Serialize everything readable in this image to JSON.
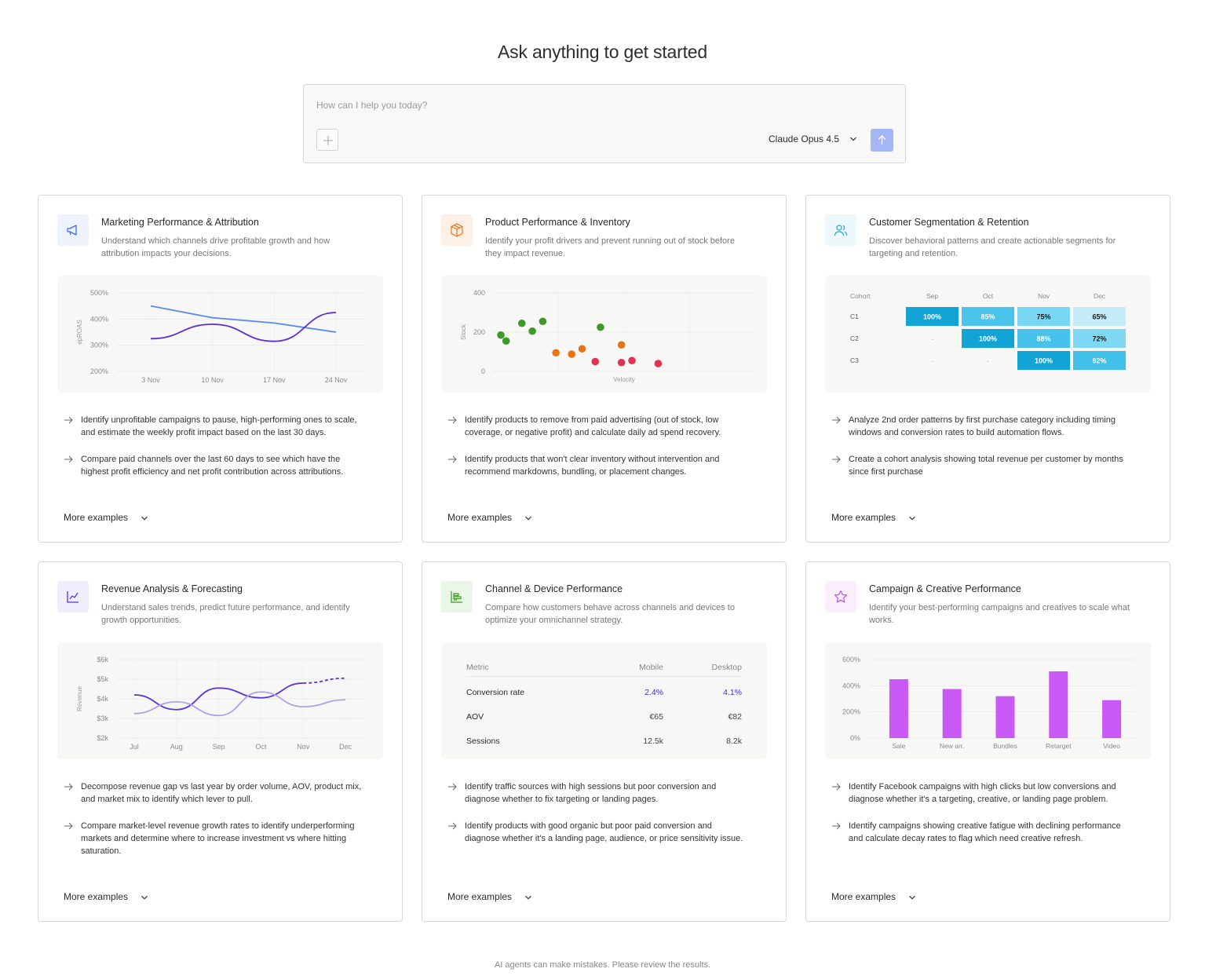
{
  "header": {
    "title": "Ask anything to get started"
  },
  "composer": {
    "placeholder": "How can I help you today?",
    "model": "Claude Opus 4.5",
    "attach_icon": "plus-icon",
    "send_icon": "arrow-up-icon",
    "send_color": "#a3b6f5"
  },
  "cards": [
    {
      "title": "Marketing Performance & Attribution",
      "desc": "Understand which channels drive profitable growth and how attribution impacts your decisions.",
      "icon": "megaphone-icon",
      "icon_bg": "#eef2fd",
      "examples": [
        "Identify unprofitable campaigns to pause, high-performing ones to scale, and estimate the weekly profit impact based on the last 30 days.",
        "Compare paid channels over the last 60 days to see which have the highest profit efficiency and net profit contribution across attributions."
      ],
      "more": "More examples"
    },
    {
      "title": "Product Performance & Inventory",
      "desc": "Identify your profit drivers and prevent running out of stock before they impact revenue.",
      "icon": "package-icon",
      "icon_bg": "#fdf0e6",
      "examples": [
        "Identify products to remove from paid advertising (out of stock, low coverage, or negative profit) and calculate daily ad spend recovery.",
        "Identify products that won't clear inventory without intervention and recommend markdowns, bundling, or placement changes."
      ],
      "more": "More examples"
    },
    {
      "title": "Customer Segmentation & Retention",
      "desc": "Discover behavioral patterns and create actionable segments for targeting and retention.",
      "icon": "users-icon",
      "icon_bg": "#ecf8fc",
      "examples": [
        "Analyze 2nd order patterns by first purchase category including timing windows and conversion rates to build automation flows.",
        "Create a cohort analysis showing total revenue per customer by months since first purchase"
      ],
      "more": "More examples"
    },
    {
      "title": "Revenue Analysis & Forecasting",
      "desc": "Understand sales trends, predict future performance, and identify growth opportunities.",
      "icon": "trend-chart-icon",
      "icon_bg": "#f0eefd",
      "examples": [
        "Decompose revenue gap vs last year by order volume, AOV, product mix, and market mix to identify which lever to pull.",
        "Compare market-level revenue growth rates to identify underperforming markets and determine where to increase investment vs where hitting saturation."
      ],
      "more": "More examples"
    },
    {
      "title": "Channel & Device Performance",
      "desc": "Compare how customers behave across channels and devices to optimize your omnichannel strategy.",
      "icon": "bar-chart-icon",
      "icon_bg": "#eaf7e8",
      "examples": [
        "Identify traffic sources with high sessions but poor conversion and diagnose whether to fix targeting or landing pages.",
        "Identify products with good organic but poor paid conversion and diagnose whether it's a landing page, audience, or price sensitivity issue."
      ],
      "more": "More examples"
    },
    {
      "title": "Campaign & Creative Performance",
      "desc": "Identify your best-performing campaigns and creatives to scale what works.",
      "icon": "star-icon",
      "icon_bg": "#fbeefd",
      "examples": [
        "Identify Facebook campaigns with high clicks but low conversions and diagnose whether it's a targeting, creative, or landing page problem.",
        "Identify campaigns showing creative fatigue with declining performance and calculate decay rates to flag which need creative refresh."
      ],
      "more": "More examples"
    }
  ],
  "chart_data": [
    {
      "type": "line",
      "ylabel": "epROAS",
      "x": [
        "3 Nov",
        "10 Nov",
        "17 Nov",
        "24 Nov"
      ],
      "yticks": [
        "500%",
        "400%",
        "300%",
        "200%"
      ],
      "ylim": [
        200,
        500
      ],
      "series": [
        {
          "values": [
            450,
            405,
            385,
            350
          ],
          "color": "#5b86f5"
        },
        {
          "values": [
            325,
            380,
            315,
            425
          ],
          "color": "#5a2fd6"
        }
      ]
    },
    {
      "type": "scatter",
      "xlabel": "Velocity",
      "ylabel": "Stock",
      "yticks": [
        "400",
        "200",
        "0"
      ],
      "ylim": [
        0,
        400
      ],
      "xlim": [
        0,
        100
      ],
      "series": [
        {
          "color": "#3d9a2a",
          "points": [
            [
              3,
              185
            ],
            [
              5,
              155
            ],
            [
              11,
              245
            ],
            [
              15,
              205
            ],
            [
              19,
              255
            ],
            [
              41,
              225
            ]
          ]
        },
        {
          "color": "#ea7312",
          "points": [
            [
              24,
              95
            ],
            [
              30,
              88
            ],
            [
              34,
              115
            ],
            [
              49,
              135
            ]
          ]
        },
        {
          "color": "#e0334f",
          "points": [
            [
              39,
              50
            ],
            [
              49,
              45
            ],
            [
              53,
              55
            ],
            [
              63,
              40
            ]
          ]
        }
      ]
    },
    {
      "type": "heatmap",
      "row_header": "Cohort",
      "columns": [
        "Sep",
        "Oct",
        "Nov",
        "Dec"
      ],
      "rows": [
        {
          "label": "C1",
          "values": [
            "100%",
            "85%",
            "75%",
            "65%"
          ]
        },
        {
          "label": "C2",
          "values": [
            "-",
            "100%",
            "88%",
            "72%"
          ]
        },
        {
          "label": "C3",
          "values": [
            "-",
            "-",
            "100%",
            "92%"
          ]
        }
      ],
      "colors": {
        "100": "#13a4d6",
        "92": "#40bfe9",
        "88": "#47c3eb",
        "85": "#4bc4ec",
        "75": "#78d7f2",
        "72": "#7fd8f3",
        "65": "#c3ecf8"
      }
    },
    {
      "type": "line",
      "ylabel": "Revenue",
      "x": [
        "Jul",
        "Aug",
        "Sep",
        "Oct",
        "Nov",
        "Dec"
      ],
      "yticks": [
        "$6k",
        "$5k",
        "$4k",
        "$3k",
        "$2k"
      ],
      "ylim": [
        2000,
        6000
      ],
      "series": [
        {
          "values": [
            4200,
            3450,
            4550,
            4050,
            4800,
            5050
          ],
          "color": "#5b33d8",
          "projected_from": "Nov"
        },
        {
          "values": [
            3250,
            3850,
            3150,
            4350,
            3600,
            3950
          ],
          "color": "#aea1ec"
        }
      ]
    },
    {
      "type": "table",
      "columns": [
        "Metric",
        "Mobile",
        "Desktop"
      ],
      "rows": [
        {
          "metric": "Conversion rate",
          "mobile": "2.4%",
          "desktop": "4.1%",
          "highlight": true
        },
        {
          "metric": "AOV",
          "mobile": "€65",
          "desktop": "€82"
        },
        {
          "metric": "Sessions",
          "mobile": "12.5k",
          "desktop": "8.2k"
        }
      ]
    },
    {
      "type": "bar",
      "categories": [
        "Sale",
        "New arr.",
        "Bundles",
        "Retarget",
        "Video"
      ],
      "values": [
        450,
        375,
        320,
        510,
        290
      ],
      "yticks": [
        "600%",
        "400%",
        "200%",
        "0%"
      ],
      "ylim": [
        0,
        600
      ],
      "color": "#c95af5"
    }
  ],
  "footer": {
    "text": "AI agents can make mistakes. Please review the results."
  }
}
